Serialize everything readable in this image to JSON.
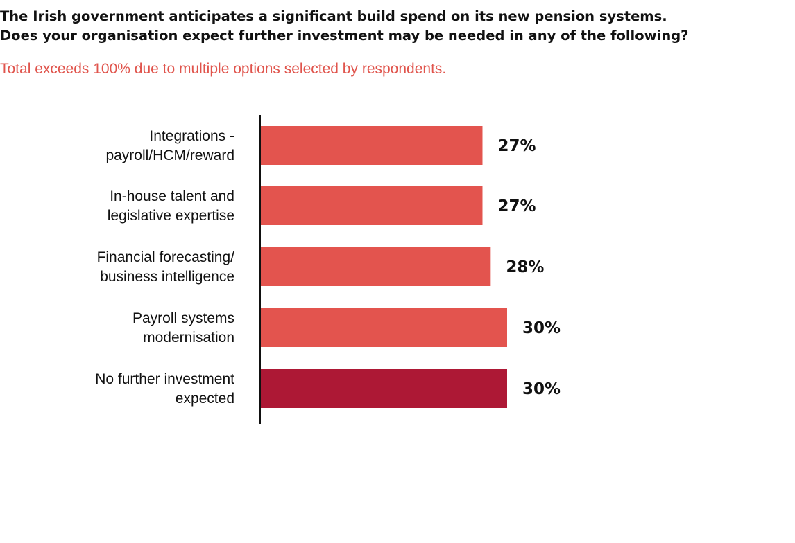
{
  "header": {
    "title_line1": "The Irish government anticipates a significant build spend on its new pension systems.",
    "title_line2": "Does your organisation expect further investment may be needed in any of the following?",
    "note": "Total exceeds 100% due to multiple options selected by respondents."
  },
  "colors": {
    "bar": "#e3544e",
    "bar_highlight": "#ad1835",
    "note": "#e0544c",
    "axis": "#111111"
  },
  "chart_data": {
    "type": "bar",
    "orientation": "horizontal",
    "categories": [
      [
        "Integrations -",
        "payroll/HCM/reward"
      ],
      [
        "In-house talent and",
        "legislative expertise"
      ],
      [
        "Financial forecasting/",
        "business intelligence"
      ],
      [
        "Payroll systems",
        "modernisation"
      ],
      [
        "No further investment",
        "expected"
      ]
    ],
    "values": [
      27,
      27,
      28,
      30,
      30
    ],
    "value_labels": [
      "27%",
      "27%",
      "28%",
      "30%",
      "30%"
    ],
    "highlight_index": 4,
    "unit": "%",
    "grid": false,
    "legend": "none"
  }
}
